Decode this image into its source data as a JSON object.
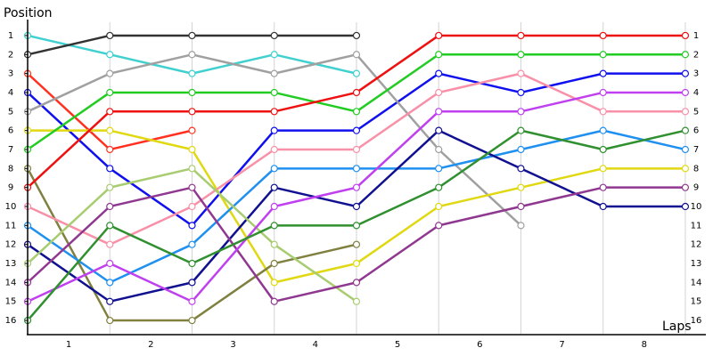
{
  "chart_data": {
    "type": "line",
    "y_label": "Position",
    "x_label": "Laps",
    "x": [
      0,
      1,
      2,
      3,
      4,
      5,
      6,
      7,
      8
    ],
    "xlim": [
      0,
      8.25
    ],
    "xticks": [
      {
        "value": 0.5,
        "label": "1"
      },
      {
        "value": 1.5,
        "label": "2"
      },
      {
        "value": 2.5,
        "label": "3"
      },
      {
        "value": 3.5,
        "label": "4"
      },
      {
        "value": 4.5,
        "label": "5"
      },
      {
        "value": 5.5,
        "label": "6"
      },
      {
        "value": 6.5,
        "label": "7"
      },
      {
        "value": 7.5,
        "label": "8"
      }
    ],
    "ylim": [
      16.7,
      0.3
    ],
    "yticks": [
      1,
      2,
      3,
      4,
      5,
      6,
      7,
      8,
      9,
      10,
      11,
      12,
      13,
      14,
      15,
      16
    ],
    "grid": true,
    "series": [
      {
        "color": "#40d0d0",
        "values": [
          1,
          2,
          3,
          2,
          3,
          null,
          null,
          null,
          null
        ]
      },
      {
        "color": "#333333",
        "values": [
          2,
          1,
          1,
          1,
          1,
          null,
          null,
          null,
          null
        ]
      },
      {
        "color": "#ff3020",
        "values": [
          3,
          7,
          6,
          null,
          null,
          null,
          null,
          null,
          null
        ]
      },
      {
        "color": "#1010ee",
        "values": [
          4,
          8,
          11,
          6,
          6,
          3,
          4,
          3,
          3
        ]
      },
      {
        "color": "#a0a0a0",
        "values": [
          5,
          3,
          2,
          3,
          2,
          7,
          11,
          null,
          null
        ]
      },
      {
        "color": "#e0d810",
        "values": [
          6,
          6,
          7,
          14,
          13,
          10,
          9,
          8,
          8
        ]
      },
      {
        "color": "#22cc22",
        "values": [
          7,
          4,
          4,
          4,
          5,
          2,
          2,
          2,
          2
        ]
      },
      {
        "color": "#808040",
        "values": [
          8,
          16,
          16,
          13,
          12,
          null,
          null,
          null,
          null
        ]
      },
      {
        "color": "#ee1111",
        "values": [
          9,
          5,
          5,
          5,
          4,
          1,
          1,
          1,
          1
        ]
      },
      {
        "color": "#f890a8",
        "values": [
          10,
          12,
          10,
          7,
          7,
          4,
          3,
          5,
          5
        ]
      },
      {
        "color": "#2090f0",
        "values": [
          11,
          14,
          12,
          8,
          8,
          8,
          7,
          6,
          7
        ]
      },
      {
        "color": "#101090",
        "values": [
          12,
          15,
          14,
          9,
          10,
          6,
          8,
          10,
          10
        ]
      },
      {
        "color": "#a8cc70",
        "values": [
          13,
          9,
          8,
          12,
          15,
          null,
          null,
          null,
          null
        ]
      },
      {
        "color": "#903890",
        "values": [
          14,
          10,
          9,
          15,
          14,
          11,
          10,
          9,
          9
        ]
      },
      {
        "color": "#c040f0",
        "values": [
          15,
          13,
          15,
          10,
          9,
          5,
          5,
          4,
          4
        ]
      },
      {
        "color": "#309030",
        "values": [
          16,
          11,
          13,
          11,
          11,
          9,
          6,
          7,
          6
        ]
      }
    ]
  }
}
